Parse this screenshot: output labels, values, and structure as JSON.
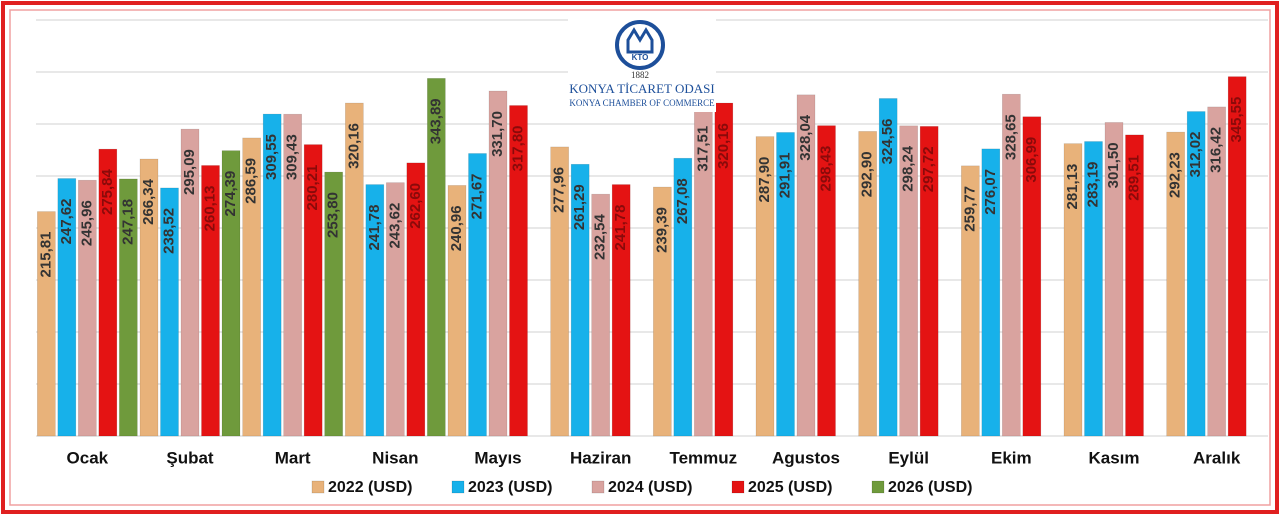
{
  "chart_data": {
    "type": "bar",
    "logo": {
      "emblem": "KTO",
      "name": "KONYA TİCARET ODASI",
      "year": "1882",
      "subtitle": "KONYA CHAMBER OF COMMERCE"
    },
    "categories": [
      "Ocak",
      "Şubat",
      "Mart",
      "Nisan",
      "Mayıs",
      "Haziran",
      "Temmuz",
      "Agustos",
      "Eylül",
      "Ekim",
      "Kasım",
      "Aralık"
    ],
    "ylim": [
      0,
      400
    ],
    "yticks": [
      0,
      50,
      100,
      150,
      200,
      250,
      300,
      350,
      400
    ],
    "grid": true,
    "legend": "bottom",
    "series": [
      {
        "name": "2022 (USD)",
        "color": "#e8b27a",
        "label_color": "#333333",
        "values": [
          215.81,
          266.34,
          286.59,
          320.16,
          240.96,
          277.96,
          239.39,
          287.9,
          292.9,
          259.77,
          281.13,
          292.23
        ],
        "value_labels": [
          "215,81",
          "266,34",
          "286,59",
          "320,16",
          "240,96",
          "277,96",
          "239,39",
          "287,90",
          "292,90",
          "259,77",
          "281,13",
          "292,23"
        ]
      },
      {
        "name": "2023 (USD)",
        "color": "#17b1ea",
        "label_color": "#333333",
        "values": [
          247.62,
          238.52,
          309.55,
          241.78,
          271.67,
          261.29,
          267.08,
          291.91,
          324.56,
          276.07,
          283.19,
          312.02
        ],
        "value_labels": [
          "247,62",
          "238,52",
          "309,55",
          "241,78",
          "271,67",
          "261,29",
          "267,08",
          "291,91",
          "324,56",
          "276,07",
          "283,19",
          "312,02"
        ]
      },
      {
        "name": "2024 (USD)",
        "color": "#d9a39f",
        "label_color": "#333333",
        "values": [
          245.96,
          295.09,
          309.43,
          243.62,
          331.7,
          232.54,
          317.51,
          328.04,
          298.24,
          328.65,
          301.5,
          316.42
        ],
        "value_labels": [
          "245,96",
          "295,09",
          "309,43",
          "243,62",
          "331,70",
          "232,54",
          "317,51",
          "328,04",
          "298,24",
          "328,65",
          "301,50",
          "316,42"
        ]
      },
      {
        "name": "2025 (USD)",
        "color": "#e41313",
        "label_color": "#8a0a0a",
        "values": [
          275.84,
          260.13,
          280.21,
          262.6,
          317.8,
          241.78,
          320.16,
          298.43,
          297.72,
          306.99,
          289.51,
          345.55
        ],
        "value_labels": [
          "275,84",
          "260,13",
          "280,21",
          "262,60",
          "317,80",
          "241,78",
          "320,16",
          "298,43",
          "297,72",
          "306,99",
          "289,51",
          "345,55"
        ]
      },
      {
        "name": "2026 (USD)",
        "color": "#6f9a3c",
        "label_color": "#333333",
        "values": [
          247.18,
          274.39,
          253.8,
          343.89,
          null,
          null,
          null,
          null,
          null,
          null,
          null,
          null
        ],
        "value_labels": [
          "247,18",
          "274,39",
          "253,80",
          "343,89",
          null,
          null,
          null,
          null,
          null,
          null,
          null,
          null
        ]
      }
    ]
  }
}
